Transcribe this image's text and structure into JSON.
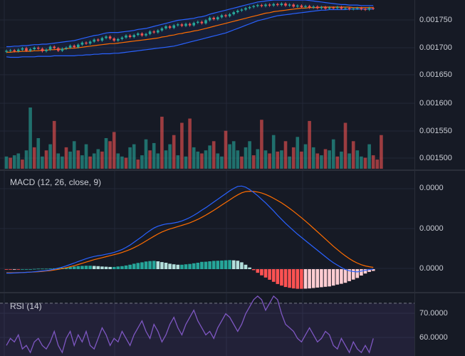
{
  "colors": {
    "background": "#161a25",
    "grid": "#232838",
    "divider": "#2a2e39",
    "up": "#26a69a",
    "down": "#ef5350",
    "bollinger_band": "#2962ff",
    "bollinger_basis": "#ff6d00",
    "macd_line": "#2962ff",
    "signal_line": "#ff6d00",
    "hist_up_strong": "#26a69a",
    "hist_up_weak": "#b2dfdb",
    "hist_down_strong": "#ff5252",
    "hist_down_weak": "#ffcdd2",
    "rsi_line": "#7e57c2",
    "rsi_band": "#7e57c2"
  },
  "price_pane": {
    "axis_labels": [
      "0.001750",
      "0.001700",
      "0.001650",
      "0.001600",
      "0.001550",
      "0.001500"
    ]
  },
  "macd_pane": {
    "title": "MACD (12, 26, close, 9)",
    "axis_labels": [
      "0.0000",
      "0.0000",
      "0.0000"
    ]
  },
  "rsi_pane": {
    "title": "RSI (14)",
    "axis_labels": [
      "70.0000",
      "60.0000"
    ]
  },
  "chart_data": [
    {
      "type": "candlestick",
      "indicator": "Bollinger Bands",
      "ylim": [
        0.00148,
        0.0018
      ],
      "close": [
        0.0017,
        0.001701,
        0.001699,
        0.001702,
        0.001705,
        0.0017,
        0.001703,
        0.001706,
        0.001704,
        0.001699,
        0.001702,
        0.001708,
        0.001705,
        0.0017,
        0.001704,
        0.001706,
        0.00171,
        0.001707,
        0.001712,
        0.001716,
        0.001714,
        0.001718,
        0.001722,
        0.00172,
        0.001725,
        0.001728,
        0.001724,
        0.00172,
        0.001723,
        0.001726,
        0.00173,
        0.001727,
        0.001731,
        0.001734,
        0.00173,
        0.001733,
        0.001738,
        0.001736,
        0.00174,
        0.001744,
        0.001748,
        0.001745,
        0.00175,
        0.001752,
        0.001749,
        0.001753,
        0.00175,
        0.001755,
        0.001757,
        0.001754,
        0.00176,
        0.001765,
        0.001762,
        0.001766,
        0.00177,
        0.001768,
        0.001772,
        0.001776,
        0.001779,
        0.001781,
        0.001784,
        0.001786,
        0.001788,
        0.00179,
        0.001788,
        0.001791,
        0.001789,
        0.001792,
        0.00179,
        0.001793,
        0.001789,
        0.001791,
        0.001787,
        0.001789,
        0.001786,
        0.001788,
        0.001785,
        0.001787,
        0.001784,
        0.001786,
        0.001783,
        0.001785,
        0.001784,
        0.001786,
        0.001783,
        0.001784,
        0.001782,
        0.001783,
        0.001784,
        0.001782,
        0.001781,
        0.001784,
        0.001783
      ],
      "upper_band": [
        0.001708,
        0.001708,
        0.001709,
        0.001709,
        0.00171,
        0.00171,
        0.001711,
        0.001712,
        0.001712,
        0.001713,
        0.001713,
        0.001714,
        0.001715,
        0.001716,
        0.001717,
        0.001718,
        0.001719,
        0.00172,
        0.001722,
        0.001724,
        0.001726,
        0.001728,
        0.00173,
        0.001731,
        0.001733,
        0.001735,
        0.001736,
        0.001736,
        0.001736,
        0.001737,
        0.001738,
        0.001739,
        0.00174,
        0.001742,
        0.001743,
        0.001744,
        0.001746,
        0.001748,
        0.00175,
        0.001752,
        0.001754,
        0.001756,
        0.001758,
        0.00176,
        0.001761,
        0.001762,
        0.001763,
        0.001764,
        0.001766,
        0.001767,
        0.001769,
        0.001772,
        0.001774,
        0.001776,
        0.001778,
        0.00178,
        0.001782,
        0.001784,
        0.001786,
        0.001788,
        0.00179,
        0.001792,
        0.001794,
        0.001796,
        0.001797,
        0.001798,
        0.001799,
        0.0018,
        0.0018,
        0.0018,
        0.0018,
        0.0018,
        0.0018,
        0.0018,
        0.0018,
        0.0018,
        0.001799,
        0.001798,
        0.001797,
        0.001796,
        0.001795,
        0.001794,
        0.001793,
        0.001792,
        0.001791,
        0.001791,
        0.00179,
        0.00179,
        0.00179,
        0.001789,
        0.001789,
        0.001789,
        0.001789
      ],
      "basis": [
        0.001697,
        0.001697,
        0.001698,
        0.001698,
        0.001699,
        0.001699,
        0.001699,
        0.0017,
        0.0017,
        0.001701,
        0.001701,
        0.001702,
        0.001702,
        0.001703,
        0.001703,
        0.001704,
        0.001705,
        0.001705,
        0.001706,
        0.001707,
        0.001708,
        0.001709,
        0.00171,
        0.001711,
        0.001712,
        0.001713,
        0.001714,
        0.001714,
        0.001715,
        0.001716,
        0.001717,
        0.001718,
        0.001719,
        0.00172,
        0.001721,
        0.001722,
        0.001723,
        0.001724,
        0.001725,
        0.001727,
        0.001728,
        0.00173,
        0.001731,
        0.001733,
        0.001734,
        0.001736,
        0.001737,
        0.001739,
        0.00174,
        0.001742,
        0.001744,
        0.001746,
        0.001748,
        0.00175,
        0.001752,
        0.001754,
        0.001756,
        0.001758,
        0.00176,
        0.001762,
        0.001764,
        0.001766,
        0.001768,
        0.00177,
        0.001772,
        0.001774,
        0.001775,
        0.001777,
        0.001778,
        0.001779,
        0.00178,
        0.001781,
        0.001782,
        0.001783,
        0.001784,
        0.001784,
        0.001785,
        0.001785,
        0.001785,
        0.001786,
        0.001786,
        0.001786,
        0.001786,
        0.001786,
        0.001786,
        0.001786,
        0.001786,
        0.001785,
        0.001785,
        0.001785,
        0.001785,
        0.001785,
        0.001785
      ],
      "lower_band": [
        0.001688,
        0.001687,
        0.001687,
        0.001687,
        0.001688,
        0.001688,
        0.001688,
        0.001688,
        0.001689,
        0.001689,
        0.001689,
        0.001689,
        0.00169,
        0.00169,
        0.00169,
        0.00169,
        0.00169,
        0.00169,
        0.001691,
        0.001691,
        0.001692,
        0.001692,
        0.001693,
        0.001693,
        0.001694,
        0.001694,
        0.001694,
        0.001695,
        0.001695,
        0.001696,
        0.001697,
        0.001698,
        0.001699,
        0.0017,
        0.001701,
        0.001702,
        0.001703,
        0.001704,
        0.001705,
        0.001706,
        0.001707,
        0.001708,
        0.001709,
        0.001711,
        0.001713,
        0.001715,
        0.001717,
        0.001719,
        0.001721,
        0.001723,
        0.001725,
        0.001727,
        0.001729,
        0.001731,
        0.001733,
        0.001735,
        0.001738,
        0.001741,
        0.001744,
        0.001747,
        0.00175,
        0.001753,
        0.001756,
        0.001759,
        0.001761,
        0.001763,
        0.001765,
        0.001767,
        0.001769,
        0.00177,
        0.001771,
        0.001772,
        0.001773,
        0.001774,
        0.001775,
        0.001776,
        0.001777,
        0.001778,
        0.001779,
        0.00178,
        0.00178,
        0.001781,
        0.001781,
        0.001781,
        0.001781,
        0.001781,
        0.001782,
        0.001782,
        0.001782,
        0.001782,
        0.001782,
        0.001782,
        0.001782
      ]
    },
    {
      "type": "bar",
      "name": "volume",
      "values": [
        0.2,
        0.18,
        0.22,
        0.25,
        0.15,
        0.3,
        1.0,
        0.35,
        0.5,
        0.2,
        0.3,
        0.4,
        0.78,
        0.25,
        0.2,
        0.35,
        0.28,
        0.45,
        0.3,
        0.22,
        0.4,
        0.2,
        0.25,
        0.32,
        0.28,
        0.5,
        0.45,
        0.6,
        0.25,
        0.2,
        0.18,
        0.35,
        0.4,
        0.15,
        0.22,
        0.48,
        0.3,
        0.42,
        0.25,
        0.85,
        0.3,
        0.4,
        0.55,
        0.22,
        0.75,
        0.2,
        0.82,
        0.35,
        0.28,
        0.25,
        0.3,
        0.38,
        0.45,
        0.25,
        0.2,
        0.62,
        0.4,
        0.45,
        0.3,
        0.2,
        0.35,
        0.45,
        0.22,
        0.32,
        0.8,
        0.3,
        0.25,
        0.55,
        0.28,
        0.3,
        0.45,
        0.2,
        0.35,
        0.52,
        0.28,
        0.4,
        0.78,
        0.35,
        0.25,
        0.22,
        0.32,
        0.3,
        0.48,
        0.2,
        0.28,
        0.75,
        0.25,
        0.45,
        0.3,
        0.2,
        0.18,
        0.4,
        0.22,
        0.15,
        0.55
      ],
      "up": [
        1,
        0,
        1,
        1,
        0,
        1,
        1,
        0,
        1,
        1,
        0,
        1,
        0,
        1,
        1,
        0,
        1,
        1,
        0,
        1,
        1,
        0,
        1,
        1,
        0,
        1,
        0,
        0,
        1,
        1,
        0,
        1,
        1,
        0,
        1,
        1,
        0,
        1,
        1,
        0,
        1,
        1,
        0,
        1,
        0,
        1,
        0,
        1,
        1,
        0,
        1,
        1,
        0,
        1,
        1,
        0,
        1,
        1,
        1,
        0,
        1,
        1,
        0,
        1,
        0,
        1,
        0,
        1,
        0,
        1,
        0,
        1,
        0,
        1,
        0,
        1,
        0,
        1,
        0,
        1,
        0,
        1,
        1,
        0,
        1,
        0,
        1,
        0,
        1,
        1,
        0,
        1,
        0
      ]
    },
    {
      "type": "line",
      "name": "MACD",
      "macd": [
        -0.2,
        -0.2,
        -0.19,
        -0.18,
        -0.17,
        -0.16,
        -0.15,
        -0.13,
        -0.11,
        -0.09,
        -0.07,
        -0.04,
        0.0,
        0.05,
        0.1,
        0.16,
        0.23,
        0.3,
        0.38,
        0.45,
        0.52,
        0.58,
        0.63,
        0.67,
        0.7,
        0.74,
        0.78,
        0.83,
        0.9,
        0.98,
        1.08,
        1.2,
        1.34,
        1.48,
        1.62,
        1.78,
        1.92,
        2.05,
        2.14,
        2.2,
        2.25,
        2.27,
        2.3,
        2.34,
        2.4,
        2.48,
        2.57,
        2.68,
        2.8,
        2.94,
        3.06,
        3.2,
        3.34,
        3.48,
        3.62,
        3.76,
        3.9,
        4.02,
        4.12,
        4.14,
        4.08,
        3.96,
        3.82,
        3.66,
        3.48,
        3.3,
        3.1,
        2.9,
        2.68,
        2.48,
        2.28,
        2.1,
        1.92,
        1.74,
        1.58,
        1.42,
        1.26,
        1.1,
        0.94,
        0.78,
        0.62,
        0.46,
        0.32,
        0.2,
        0.08,
        -0.02,
        -0.08,
        -0.12,
        -0.14,
        -0.1,
        -0.06,
        -0.02,
        0.0
      ],
      "signal": [
        -0.18,
        -0.18,
        -0.18,
        -0.17,
        -0.17,
        -0.16,
        -0.15,
        -0.14,
        -0.13,
        -0.11,
        -0.09,
        -0.07,
        -0.04,
        -0.01,
        0.03,
        0.07,
        0.12,
        0.17,
        0.23,
        0.29,
        0.35,
        0.41,
        0.47,
        0.52,
        0.57,
        0.62,
        0.67,
        0.72,
        0.77,
        0.83,
        0.9,
        0.98,
        1.07,
        1.17,
        1.28,
        1.4,
        1.52,
        1.64,
        1.75,
        1.85,
        1.93,
        2.0,
        2.06,
        2.12,
        2.18,
        2.24,
        2.31,
        2.39,
        2.48,
        2.58,
        2.69,
        2.81,
        2.93,
        3.06,
        3.19,
        3.32,
        3.45,
        3.58,
        3.7,
        3.8,
        3.86,
        3.88,
        3.87,
        3.84,
        3.79,
        3.72,
        3.63,
        3.53,
        3.42,
        3.3,
        3.17,
        3.03,
        2.88,
        2.72,
        2.56,
        2.39,
        2.22,
        2.04,
        1.86,
        1.68,
        1.5,
        1.32,
        1.14,
        0.97,
        0.81,
        0.66,
        0.52,
        0.4,
        0.3,
        0.22,
        0.16,
        0.12,
        0.09
      ],
      "histogram": [
        -0.02,
        -0.02,
        -0.01,
        -0.01,
        0.0,
        0.0,
        0.0,
        0.01,
        0.02,
        0.02,
        0.02,
        0.03,
        0.04,
        0.06,
        0.07,
        0.09,
        0.11,
        0.13,
        0.15,
        0.16,
        0.17,
        0.17,
        0.16,
        0.15,
        0.13,
        0.12,
        0.11,
        0.11,
        0.13,
        0.15,
        0.18,
        0.22,
        0.27,
        0.31,
        0.34,
        0.38,
        0.4,
        0.41,
        0.39,
        0.35,
        0.32,
        0.27,
        0.24,
        0.22,
        0.22,
        0.24,
        0.26,
        0.29,
        0.32,
        0.36,
        0.37,
        0.39,
        0.41,
        0.42,
        0.43,
        0.44,
        0.45,
        0.44,
        0.42,
        0.34,
        0.22,
        0.08,
        -0.05,
        -0.18,
        -0.31,
        -0.42,
        -0.53,
        -0.63,
        -0.74,
        -0.82,
        -0.89,
        -0.93,
        -0.96,
        -0.98,
        -0.98,
        -0.97,
        -0.96,
        -0.94,
        -0.92,
        -0.9,
        -0.88,
        -0.86,
        -0.82,
        -0.77,
        -0.73,
        -0.68,
        -0.6,
        -0.52,
        -0.44,
        -0.32,
        -0.22,
        -0.14,
        -0.09
      ]
    },
    {
      "type": "line",
      "name": "RSI",
      "ylim": [
        55,
        73
      ],
      "overbought": 70,
      "values": [
        58,
        60,
        59,
        61,
        57,
        58,
        56,
        59,
        60,
        58,
        57,
        59,
        62,
        58,
        56,
        60,
        62,
        58,
        61,
        59,
        62,
        58,
        57,
        60,
        63,
        61,
        58,
        60,
        59,
        62,
        60,
        58,
        61,
        63,
        65,
        62,
        60,
        64,
        62,
        59,
        61,
        64,
        66,
        63,
        61,
        64,
        66,
        68,
        65,
        63,
        61,
        62,
        60,
        63,
        65,
        67,
        66,
        64,
        62,
        64,
        67,
        69,
        71,
        72,
        71,
        68,
        70,
        72,
        71,
        67,
        64,
        63,
        62,
        60,
        59,
        61,
        63,
        61,
        59,
        60,
        62,
        61,
        58,
        57,
        60,
        58,
        56,
        59,
        57,
        56,
        58,
        56,
        60
      ]
    }
  ]
}
